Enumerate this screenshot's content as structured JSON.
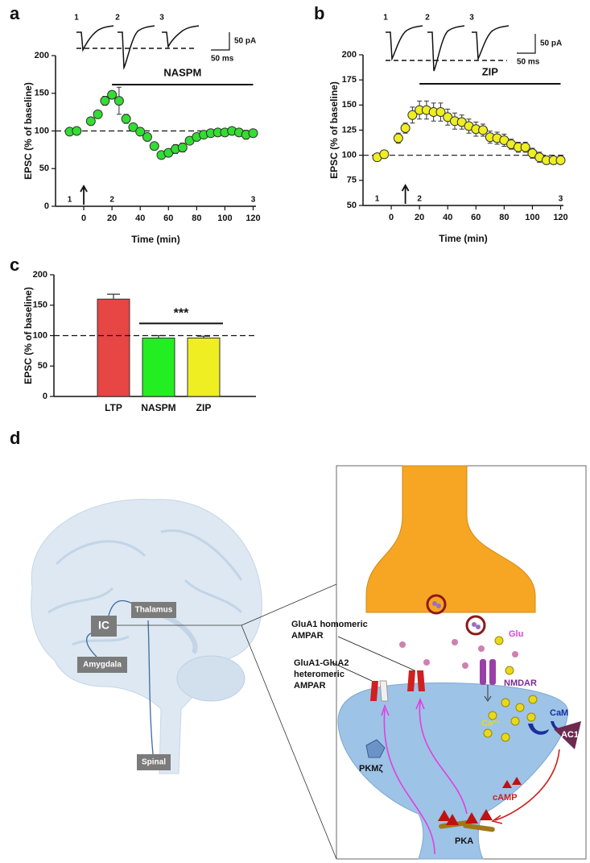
{
  "chart_data": [
    {
      "panel": "a",
      "type": "scatter",
      "x": [
        -10,
        -5,
        5,
        10,
        15,
        20,
        25,
        30,
        35,
        40,
        45,
        50,
        55,
        60,
        65,
        70,
        75,
        80,
        85,
        90,
        95,
        100,
        105,
        110,
        115,
        120
      ],
      "values": [
        99,
        100,
        113,
        122,
        140,
        148,
        140,
        116,
        105,
        99,
        92,
        80,
        68,
        71,
        76,
        78,
        87,
        92,
        95,
        97,
        98,
        98,
        100,
        98,
        95,
        97
      ],
      "errors": [
        3,
        3,
        5,
        5,
        6,
        5,
        18,
        6,
        5,
        5,
        4,
        5,
        5,
        5,
        6,
        6,
        5,
        4,
        4,
        4,
        4,
        4,
        4,
        5,
        6,
        4
      ],
      "color": "#33dd33",
      "xlim": [
        -20,
        122
      ],
      "xticks": [
        0,
        20,
        40,
        60,
        80,
        100,
        120
      ],
      "ylim": [
        0,
        200
      ],
      "yticks": [
        0,
        50,
        100,
        150,
        200
      ],
      "xlabel": "Time (min)",
      "ylabel": "EPSC (% of baseline)",
      "baseline": 100,
      "treatment": {
        "label": "NASPM",
        "start": 20,
        "end": 120
      },
      "time_points": [
        {
          "label": "1",
          "x": -10
        },
        {
          "label": "2",
          "x": 20
        },
        {
          "label": "3",
          "x": 120
        }
      ],
      "arrow_x": 0,
      "trace_labels": [
        "1",
        "2",
        "3"
      ],
      "scale_bar": [
        "50 pA",
        "50 ms"
      ]
    },
    {
      "panel": "b",
      "type": "scatter",
      "x": [
        -10,
        -5,
        5,
        10,
        15,
        20,
        25,
        30,
        35,
        40,
        45,
        50,
        55,
        60,
        65,
        70,
        75,
        80,
        85,
        90,
        95,
        100,
        105,
        110,
        115,
        120
      ],
      "values": [
        98,
        101,
        117,
        127,
        140,
        145,
        145,
        143,
        143,
        138,
        134,
        133,
        129,
        126,
        125,
        118,
        117,
        115,
        111,
        108,
        108,
        102,
        98,
        95,
        95,
        95
      ],
      "errors": [
        3,
        3,
        5,
        5,
        8,
        9,
        9,
        9,
        9,
        8,
        8,
        7,
        7,
        7,
        6,
        6,
        6,
        6,
        5,
        5,
        5,
        5,
        5,
        4,
        4,
        3
      ],
      "color": "#eeee22",
      "xlim": [
        -20,
        122
      ],
      "xticks": [
        0,
        20,
        40,
        60,
        80,
        100,
        120
      ],
      "ylim": [
        50,
        200
      ],
      "yticks": [
        50,
        75,
        100,
        125,
        150,
        175,
        200
      ],
      "xlabel": "Time (min)",
      "ylabel": "EPSC (% of baseline)",
      "baseline": 100,
      "treatment": {
        "label": "ZIP",
        "start": 20,
        "end": 120
      },
      "time_points": [
        {
          "label": "1",
          "x": -10
        },
        {
          "label": "2",
          "x": 20
        },
        {
          "label": "3",
          "x": 120
        }
      ],
      "arrow_x": 10,
      "trace_labels": [
        "1",
        "2",
        "3"
      ],
      "scale_bar": [
        "50 pA",
        "50 ms"
      ]
    },
    {
      "panel": "c",
      "type": "bar",
      "categories": [
        "LTP",
        "NASPM",
        "ZIP"
      ],
      "values": [
        160,
        96,
        96
      ],
      "errors": [
        8,
        4,
        3
      ],
      "colors": [
        "#e84545",
        "#22ee22",
        "#eeee22"
      ],
      "ylim": [
        0,
        200
      ],
      "yticks": [
        0,
        50,
        100,
        150,
        200
      ],
      "ylabel": "EPSC (% of baseline)",
      "baseline": 100,
      "significance": "***"
    }
  ],
  "diagram": {
    "panel": "d",
    "regions": {
      "ic": "IC",
      "thalamus": "Thalamus",
      "amygdala": "Amygdala",
      "spinal": "Spinal"
    },
    "glua1_homomeric": [
      "GluA1 homomeric",
      "AMPAR"
    ],
    "glua1_glua2": [
      "GluA1-GluA2",
      "heteromeric",
      "AMPAR"
    ],
    "glu": "Glu",
    "nmdar": "NMDAR",
    "cam": "CaM",
    "ca": "Ca²⁺",
    "ac1": "AC1",
    "camp": "cAMP",
    "pkmz": "PKMζ",
    "pka": "PKA"
  }
}
